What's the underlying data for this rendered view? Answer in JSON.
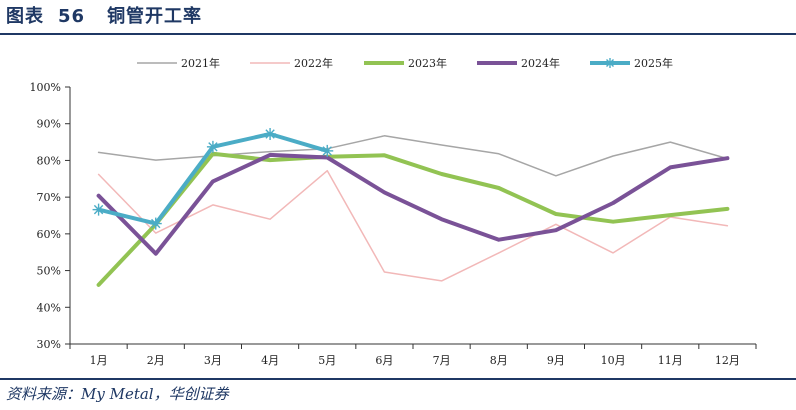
{
  "header": {
    "figure_label": "图表",
    "figure_number": "56",
    "title": "铜管开工率"
  },
  "footer": {
    "source": "资料来源：My Metal，华创证券"
  },
  "colors": {
    "accent": "#1f3864",
    "series_2021": "#a6a6a6",
    "series_2022": "#f2b8b8",
    "series_2023": "#92c353",
    "series_2024": "#7a5297",
    "series_2025": "#4bacc6"
  },
  "chart_data": {
    "type": "line",
    "title": "铜管开工率",
    "xlabel": "",
    "ylabel": "",
    "categories": [
      "1月",
      "2月",
      "3月",
      "4月",
      "5月",
      "6月",
      "7月",
      "8月",
      "9月",
      "10月",
      "11月",
      "12月"
    ],
    "y_ticks": [
      "30%",
      "40%",
      "50%",
      "60%",
      "70%",
      "80%",
      "90%",
      "100%"
    ],
    "ylim": [
      30,
      100
    ],
    "y_unit": "%",
    "grid": false,
    "legend_position": "top",
    "series": [
      {
        "name": "2021年",
        "color": "#a6a6a6",
        "width": 1.5,
        "marker": "none",
        "values": [
          82.2,
          80.1,
          81.3,
          82.4,
          83.2,
          86.7,
          84.2,
          81.8,
          75.8,
          81.2,
          85.0,
          80.5
        ]
      },
      {
        "name": "2022年",
        "color": "#f2b8b8",
        "width": 1.5,
        "marker": "none",
        "values": [
          76.2,
          60.2,
          67.9,
          64.0,
          77.2,
          49.6,
          47.2,
          54.8,
          62.6,
          54.8,
          64.6,
          62.2
        ]
      },
      {
        "name": "2023年",
        "color": "#92c353",
        "width": 4,
        "marker": "none",
        "values": [
          46.1,
          62.6,
          81.8,
          80.1,
          81.0,
          81.4,
          76.3,
          72.5,
          65.4,
          63.3,
          65.1,
          66.8
        ]
      },
      {
        "name": "2024年",
        "color": "#7a5297",
        "width": 4,
        "marker": "none",
        "values": [
          70.4,
          54.6,
          74.3,
          81.5,
          80.8,
          71.3,
          64.0,
          58.4,
          61.0,
          68.4,
          78.1,
          80.6
        ]
      },
      {
        "name": "2025年",
        "color": "#4bacc6",
        "width": 4,
        "marker": "star",
        "values": [
          66.6,
          62.8,
          83.7,
          87.2,
          82.6,
          null,
          null,
          null,
          null,
          null,
          null,
          null
        ]
      }
    ]
  }
}
